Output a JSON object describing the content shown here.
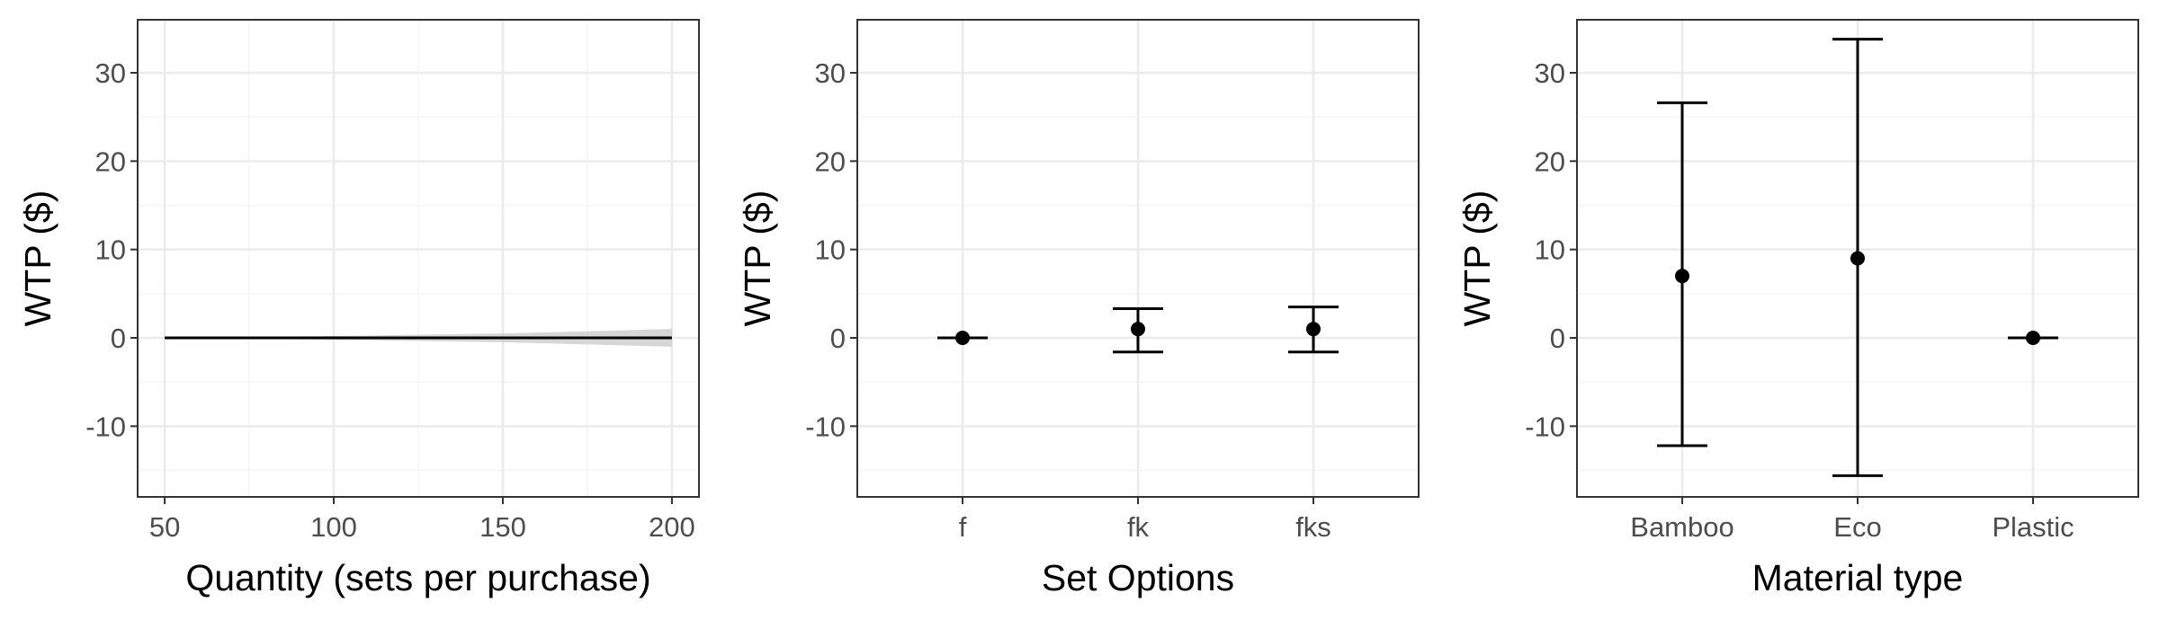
{
  "colors": {
    "background": "#ffffff",
    "grid_major": "#ebebeb",
    "grid_minor": "#f5f5f5",
    "panel_border": "#333333",
    "tick_label": "#4d4d4d",
    "mark": "#000000",
    "ribbon": "#c8c8c8"
  },
  "chart_data": [
    {
      "type": "line",
      "xlabel": "Quantity (sets per purchase)",
      "ylabel": "WTP ($)",
      "xlim": [
        42,
        208
      ],
      "ylim": [
        -18,
        36
      ],
      "x_ticks": [
        50,
        100,
        150,
        200
      ],
      "x_tick_labels": [
        "50",
        "100",
        "150",
        "200"
      ],
      "y_ticks": [
        -10,
        0,
        10,
        20,
        30
      ],
      "y_tick_labels": [
        "-10",
        "0",
        "10",
        "20",
        "30"
      ],
      "grid": true,
      "series": [
        {
          "x": [
            50,
            75,
            100,
            125,
            150,
            175,
            200
          ],
          "y": [
            0,
            0,
            0,
            0,
            0,
            0,
            0
          ],
          "lower": [
            0,
            -0.1,
            -0.2,
            -0.35,
            -0.5,
            -0.75,
            -1.0
          ],
          "upper": [
            0,
            0.1,
            0.2,
            0.35,
            0.5,
            0.75,
            1.0
          ]
        }
      ]
    },
    {
      "type": "scatter",
      "xlabel": "Set Options",
      "ylabel": "WTP ($)",
      "categories": [
        "f",
        "fk",
        "fks"
      ],
      "ylim": [
        -18,
        36
      ],
      "y_ticks": [
        -10,
        0,
        10,
        20,
        30
      ],
      "y_tick_labels": [
        "-10",
        "0",
        "10",
        "20",
        "30"
      ],
      "grid": true,
      "values": [
        0,
        1,
        1
      ],
      "lower": [
        0,
        -1.6,
        -1.6
      ],
      "upper": [
        0,
        3.3,
        3.5
      ]
    },
    {
      "type": "scatter",
      "xlabel": "Material type",
      "ylabel": "WTP ($)",
      "categories": [
        "Bamboo",
        "Eco",
        "Plastic"
      ],
      "ylim": [
        -18,
        36
      ],
      "y_ticks": [
        -10,
        0,
        10,
        20,
        30
      ],
      "y_tick_labels": [
        "-10",
        "0",
        "10",
        "20",
        "30"
      ],
      "grid": true,
      "values": [
        7,
        9,
        0
      ],
      "lower": [
        -12.2,
        -15.6,
        0
      ],
      "upper": [
        26.6,
        33.8,
        0
      ]
    }
  ]
}
